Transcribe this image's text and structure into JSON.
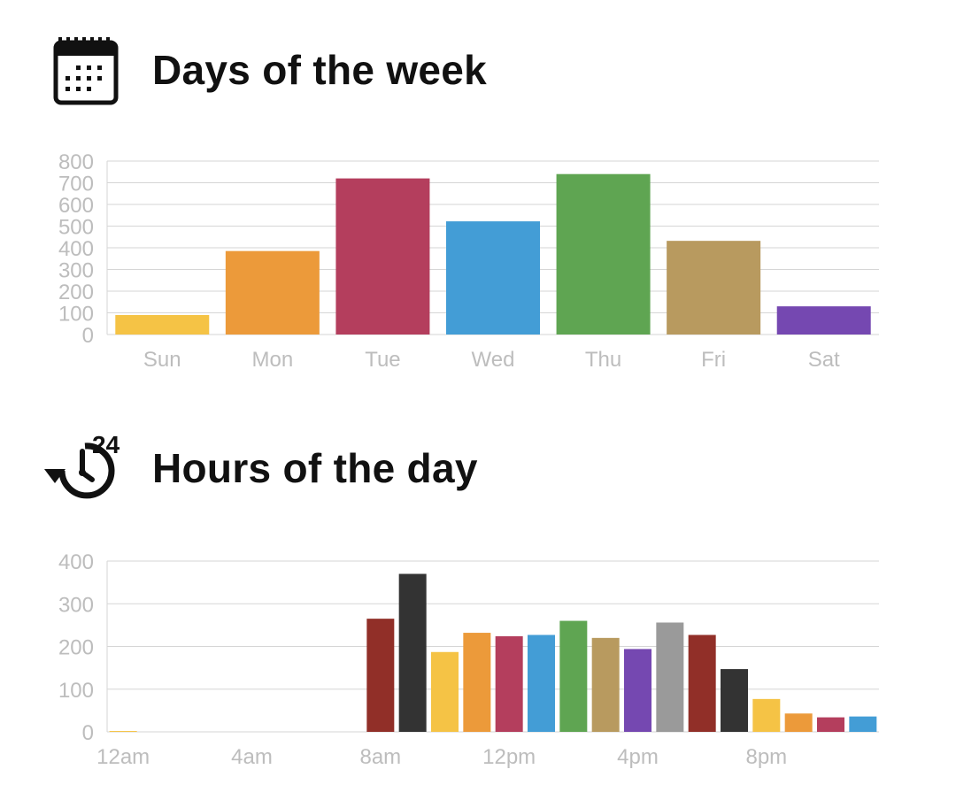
{
  "days_section": {
    "title": "Days of the week",
    "icon": "calendar-icon"
  },
  "hours_section": {
    "title": "Hours of the day",
    "icon": "clock-24-history-icon"
  },
  "colors": {
    "axis_text": "#bdbdbd",
    "grid": "#d6d6d6",
    "title": "#111111"
  },
  "chart_data": [
    {
      "type": "bar",
      "title": "Days of the week",
      "categories": [
        "Sun",
        "Mon",
        "Tue",
        "Wed",
        "Thu",
        "Fri",
        "Sat"
      ],
      "values": [
        90,
        385,
        720,
        522,
        740,
        432,
        130
      ],
      "colors": [
        "#f5c345",
        "#ec9a3a",
        "#b43e5d",
        "#439dd6",
        "#5fa552",
        "#b89a5f",
        "#7548b1"
      ],
      "yticks": [
        0,
        100,
        200,
        300,
        400,
        500,
        600,
        700,
        800
      ],
      "ylim": [
        0,
        800
      ],
      "xlabel": "",
      "ylabel": "",
      "grid": true,
      "legend": "none"
    },
    {
      "type": "bar",
      "title": "Hours of the day",
      "categories": [
        "12am",
        "1am",
        "2am",
        "3am",
        "4am",
        "5am",
        "6am",
        "7am",
        "8am",
        "9am",
        "10am",
        "11am",
        "12pm",
        "1pm",
        "2pm",
        "3pm",
        "4pm",
        "5pm",
        "6pm",
        "7pm",
        "8pm",
        "9pm",
        "10pm",
        "11pm"
      ],
      "values": [
        2,
        0,
        0,
        0,
        0,
        0,
        0,
        0,
        265,
        370,
        187,
        232,
        224,
        227,
        260,
        220,
        194,
        256,
        227,
        147,
        77,
        43,
        34,
        36
      ],
      "colors": [
        "#f5c345",
        "#ec9a3a",
        "#b43e5d",
        "#439dd6",
        "#5fa552",
        "#b89a5f",
        "#7548b1",
        "#9a9a9a",
        "#912f28",
        "#333333",
        "#f5c345",
        "#ec9a3a",
        "#b43e5d",
        "#439dd6",
        "#5fa552",
        "#b89a5f",
        "#7548b1",
        "#9a9a9a",
        "#912f28",
        "#333333",
        "#f5c345",
        "#ec9a3a",
        "#b43e5d",
        "#439dd6"
      ],
      "xtick_labels": [
        "12am",
        "4am",
        "8am",
        "12pm",
        "4pm",
        "8pm"
      ],
      "yticks": [
        0,
        100,
        200,
        300,
        400
      ],
      "ylim": [
        0,
        400
      ],
      "xlabel": "",
      "ylabel": "",
      "grid": true,
      "legend": "none"
    }
  ]
}
